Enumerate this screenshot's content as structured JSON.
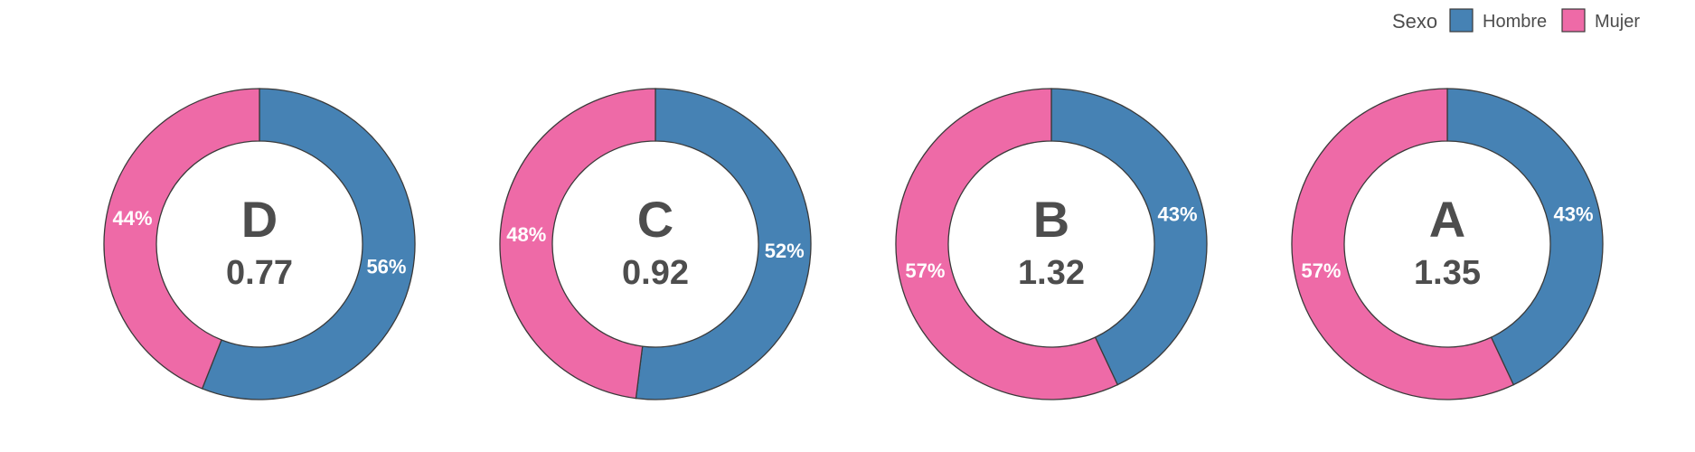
{
  "chart_data": {
    "type": "pie",
    "legend": {
      "title": "Sexo",
      "placement": "top-right",
      "entries": [
        {
          "label": "Hombre",
          "color": "#4682b4"
        },
        {
          "label": "Mujer",
          "color": "#ee6aa7"
        }
      ]
    },
    "donuts": [
      {
        "category": "D",
        "value": "0.77",
        "hombre": 56,
        "mujer": 44
      },
      {
        "category": "C",
        "value": "0.92",
        "hombre": 52,
        "mujer": 48
      },
      {
        "category": "B",
        "value": "1.32",
        "hombre": 43,
        "mujer": 57
      },
      {
        "category": "A",
        "value": "1.35",
        "hombre": 43,
        "mujer": 57
      }
    ]
  }
}
